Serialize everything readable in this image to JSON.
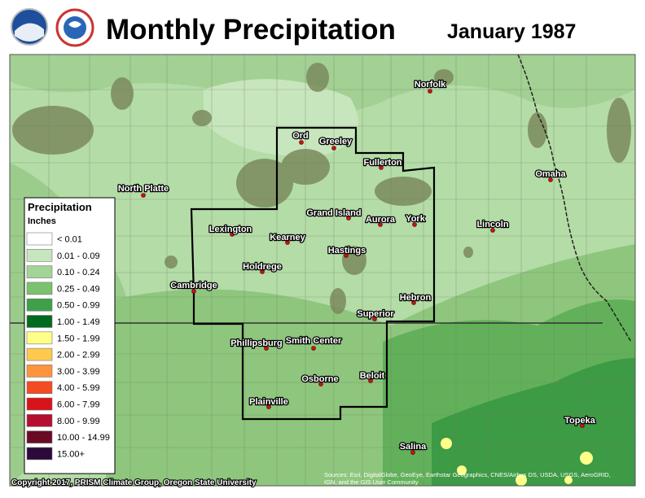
{
  "header": {
    "title": "Monthly Precipitation",
    "date": "January 1987"
  },
  "legend": {
    "title": "Precipitation",
    "units": "Inches",
    "items": [
      {
        "label": "< 0.01",
        "color": "#ffffff"
      },
      {
        "label": "0.01 - 0.09",
        "color": "#c6e6bd"
      },
      {
        "label": "0.10 - 0.24",
        "color": "#a3d495"
      },
      {
        "label": "0.25 - 0.49",
        "color": "#7cc16e"
      },
      {
        "label": "0.50 - 0.99",
        "color": "#3ea14a"
      },
      {
        "label": "1.00 - 1.49",
        "color": "#006b1e"
      },
      {
        "label": "1.50 - 1.99",
        "color": "#ffff8a"
      },
      {
        "label": "2.00 - 2.99",
        "color": "#ffc94f"
      },
      {
        "label": "3.00 - 3.99",
        "color": "#ff943c"
      },
      {
        "label": "4.00 - 5.99",
        "color": "#f24c22"
      },
      {
        "label": "6.00 - 7.99",
        "color": "#d8141a"
      },
      {
        "label": "8.00 - 9.99",
        "color": "#b40f2e"
      },
      {
        "label": "10.00 - 14.99",
        "color": "#6b0a25"
      },
      {
        "label": "15.00+",
        "color": "#2b0a3a"
      }
    ]
  },
  "cities": [
    "Norfolk",
    "Ord",
    "Greeley",
    "Fullerton",
    "Omaha",
    "North Platte",
    "Grand Island",
    "Aurora",
    "York",
    "Lincoln",
    "Lexington",
    "Kearney",
    "Hastings",
    "Holdrege",
    "Cambridge",
    "Hebron",
    "Superior",
    "Phillipsburg",
    "Smith Center",
    "Beloit",
    "Osborne",
    "Plainville",
    "Topeka",
    "Salina"
  ],
  "footer": {
    "copyright": "Copyright 2017, PRISM Climate Group, Oregon State University",
    "attribution_line1": "Sources: Esri, DigitalGlobe, GeoEye, Earthstar Geographics, CNES/Airbus DS, USDA, USGS, AeroGRID,",
    "attribution_line2": "IGN, and the GIS User Community"
  }
}
